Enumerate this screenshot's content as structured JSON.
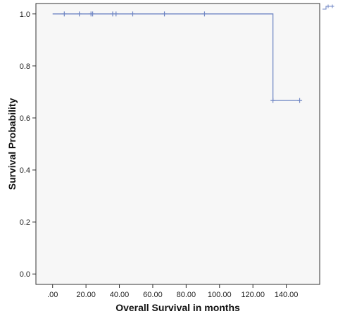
{
  "chart_data": {
    "type": "line",
    "step": true,
    "xlabel": "Overall Survival in months",
    "ylabel": "Survival Probability",
    "xlim": [
      -10,
      160
    ],
    "ylim": [
      -0.04,
      1.04
    ],
    "xticks": [
      0,
      20,
      40,
      60,
      80,
      100,
      120,
      140
    ],
    "xtick_labels": [
      ".00",
      "20.00",
      "40.00",
      "60.00",
      "80.00",
      "100.00",
      "120.00",
      "140.00"
    ],
    "yticks": [
      0,
      0.2,
      0.4,
      0.6,
      0.8,
      1.0
    ],
    "ytick_labels": [
      "0.0",
      "0.2",
      "0.4",
      "0.6",
      "0.8",
      "1.0"
    ],
    "grid": false,
    "colors": {
      "line": "#6f86c4",
      "plot_bg": "#f7f7f7",
      "frame": "#333333"
    },
    "series": [
      {
        "steps": [
          {
            "x": 0,
            "y": 1.0
          },
          {
            "x": 132,
            "y": 1.0
          },
          {
            "x": 132,
            "y": 0.667
          },
          {
            "x": 148,
            "y": 0.667
          }
        ],
        "censored": [
          {
            "x": 7,
            "y": 1.0
          },
          {
            "x": 16,
            "y": 1.0
          },
          {
            "x": 23,
            "y": 1.0
          },
          {
            "x": 24,
            "y": 1.0
          },
          {
            "x": 36,
            "y": 1.0
          },
          {
            "x": 38,
            "y": 1.0
          },
          {
            "x": 48,
            "y": 1.0
          },
          {
            "x": 67,
            "y": 1.0
          },
          {
            "x": 91,
            "y": 1.0
          },
          {
            "x": 132,
            "y": 0.667
          },
          {
            "x": 148,
            "y": 0.667
          }
        ]
      }
    ],
    "legend": {
      "placement": "top-right",
      "icon": "step-censored-legend-icon"
    }
  }
}
